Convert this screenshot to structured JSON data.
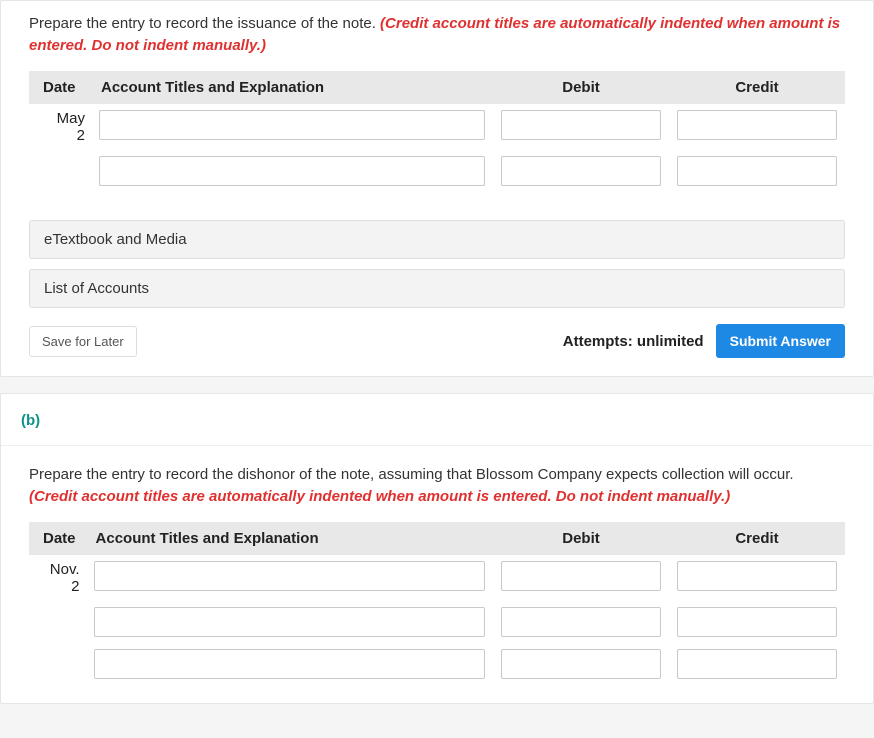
{
  "partA": {
    "instruction": "Prepare the entry to record the issuance of the note. ",
    "hint": "(Credit account titles are automatically indented when amount is entered. Do not indent manually.)",
    "headers": {
      "date": "Date",
      "account": "Account Titles and Explanation",
      "debit": "Debit",
      "credit": "Credit"
    },
    "date_line1": "May",
    "date_line2": "2",
    "rows": [
      {
        "account": "",
        "debit": "",
        "credit": ""
      },
      {
        "account": "",
        "debit": "",
        "credit": ""
      }
    ],
    "panels": {
      "etext": "eTextbook and Media",
      "loa": "List of Accounts"
    },
    "footer": {
      "save": "Save for Later",
      "attempts": "Attempts: unlimited",
      "submit": "Submit Answer"
    }
  },
  "partB": {
    "label": "(b)",
    "instruction": "Prepare the entry to record the dishonor of the note, assuming that Blossom Company expects collection will occur. ",
    "hint": "(Credit account titles are automatically indented when amount is entered. Do not indent manually.)",
    "headers": {
      "date": "Date",
      "account": "Account Titles and Explanation",
      "debit": "Debit",
      "credit": "Credit"
    },
    "date_line1": "Nov.",
    "date_line2": "2",
    "rows": [
      {
        "account": "",
        "debit": "",
        "credit": ""
      },
      {
        "account": "",
        "debit": "",
        "credit": ""
      },
      {
        "account": "",
        "debit": "",
        "credit": ""
      }
    ]
  },
  "colors": {
    "hint": "#e03131",
    "header_bg": "#e8e8e8",
    "primary_btn": "#1e88e5",
    "part_label": "#0d9488"
  }
}
